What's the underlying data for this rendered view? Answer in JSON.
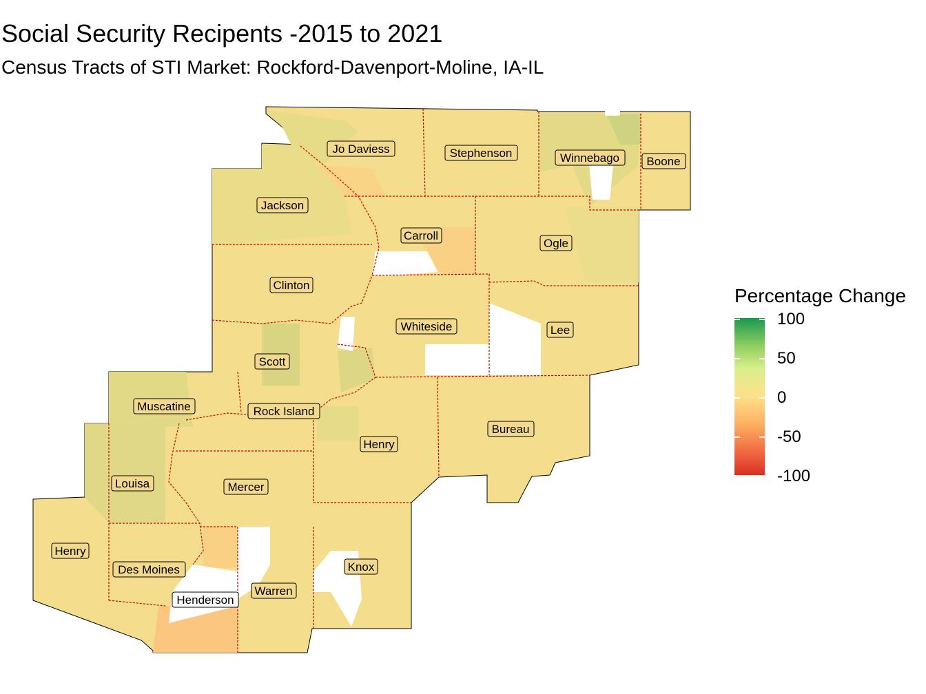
{
  "title": "Social Security Recipents -2015 to 2021",
  "subtitle": "Census Tracts of STI Market: Rockford-Davenport-Moline, IA-IL",
  "legend": {
    "title": "Percentage Change",
    "ticks": [
      "100",
      "50",
      "0",
      "-50",
      "-100"
    ],
    "colors": [
      "#1a9850",
      "#91cf60",
      "#d9ef8b",
      "#fee08b",
      "#fdae61",
      "#f46d43",
      "#d73027"
    ]
  },
  "map": {
    "base_fill": "#f7dc8d",
    "border_color": "#cc0000",
    "counties": [
      "Jo Daviess",
      "Stephenson",
      "Winnebago",
      "Boone",
      "Jackson",
      "Carroll",
      "Ogle",
      "Clinton",
      "Whiteside",
      "Lee",
      "Scott",
      "Muscatine",
      "Rock Island",
      "Bureau",
      "Henry",
      "Louisa",
      "Mercer",
      "Henry",
      "Des Moines",
      "Knox",
      "Warren",
      "Henderson"
    ]
  }
}
